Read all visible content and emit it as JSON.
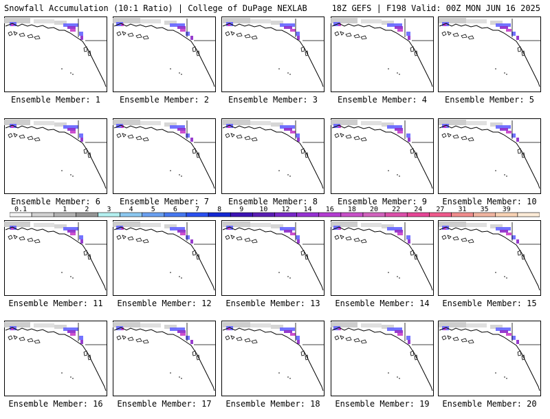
{
  "header": {
    "title_left": "Snowfall Accumulation (10:1 Ratio) | College of DuPage NEXLAB",
    "title_right": "18Z GEFS | F198 Valid: 00Z MON JUN 16 2025"
  },
  "panels": [
    {
      "label": "Ensemble Member: 1"
    },
    {
      "label": "Ensemble Member: 2"
    },
    {
      "label": "Ensemble Member: 3"
    },
    {
      "label": "Ensemble Member: 4"
    },
    {
      "label": "Ensemble Member: 5"
    },
    {
      "label": "Ensemble Member: 6"
    },
    {
      "label": "Ensemble Member: 7"
    },
    {
      "label": "Ensemble Member: 8"
    },
    {
      "label": "Ensemble Member: 9"
    },
    {
      "label": "Ensemble Member: 10"
    },
    {
      "label": "Ensemble Member: 11"
    },
    {
      "label": "Ensemble Member: 12"
    },
    {
      "label": "Ensemble Member: 13"
    },
    {
      "label": "Ensemble Member: 14"
    },
    {
      "label": "Ensemble Member: 15"
    },
    {
      "label": "Ensemble Member: 16"
    },
    {
      "label": "Ensemble Member: 17"
    },
    {
      "label": "Ensemble Member: 18"
    },
    {
      "label": "Ensemble Member: 19"
    },
    {
      "label": "Ensemble Member: 20"
    }
  ],
  "colorbar": {
    "labels": [
      "0.1",
      "1",
      "2",
      "3",
      "4",
      "5",
      "6",
      "7",
      "8",
      "9",
      "10",
      "12",
      "14",
      "16",
      "18",
      "20",
      "22",
      "24",
      "27",
      "31",
      "35",
      "39"
    ],
    "colors": [
      "#f4f4f4",
      "#d2d2d2",
      "#b4b4b4",
      "#969696",
      "#b4f0f0",
      "#8cc8f0",
      "#6aa0f0",
      "#4678f0",
      "#2a50f0",
      "#1428d2",
      "#3c14b4",
      "#5a1eb4",
      "#7828c8",
      "#9632d2",
      "#b43cd2",
      "#c850c8",
      "#d264be",
      "#dc50aa",
      "#e64696",
      "#f05a8c",
      "#f08c8c",
      "#f0b4a0",
      "#f8d2b4",
      "#fcebd7"
    ],
    "accent_colors": {
      "snow_light": "#c8c8c8",
      "snow_blue": "#6464ff",
      "snow_purple": "#8c28c8",
      "snow_magenta": "#c83cc8"
    }
  }
}
